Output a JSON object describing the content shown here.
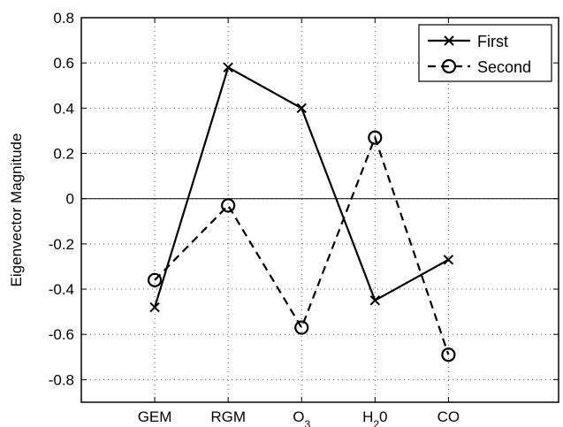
{
  "chart_data": {
    "type": "line",
    "title": "",
    "xlabel": "",
    "ylabel": "Eigenvector Magnitude",
    "categories": [
      {
        "base": "GEM",
        "sub": ""
      },
      {
        "base": "RGM",
        "sub": ""
      },
      {
        "base": "O",
        "sub": "3"
      },
      {
        "base": "H",
        "sub": "2",
        "tail": "0"
      },
      {
        "base": "CO",
        "sub": ""
      }
    ],
    "series": [
      {
        "name": "First",
        "marker": "x",
        "dash": "solid",
        "values": [
          -0.48,
          0.58,
          0.4,
          -0.45,
          -0.27
        ]
      },
      {
        "name": "Second",
        "marker": "o",
        "dash": "dashed",
        "values": [
          -0.36,
          -0.03,
          -0.57,
          0.27,
          -0.69
        ]
      }
    ],
    "ylim": [
      -0.9,
      0.8
    ],
    "yticks": [
      0.8,
      0.6,
      0.4,
      0.2,
      0,
      -0.2,
      -0.4,
      -0.6,
      -0.8
    ],
    "ytick_labels": [
      "0.8",
      "0.6",
      "0.4",
      "0.2",
      "0",
      "-0.2",
      "-0.4",
      "-0.6",
      "-0.8"
    ],
    "grid": true,
    "zero_line": true,
    "legend_position": "top-right"
  }
}
